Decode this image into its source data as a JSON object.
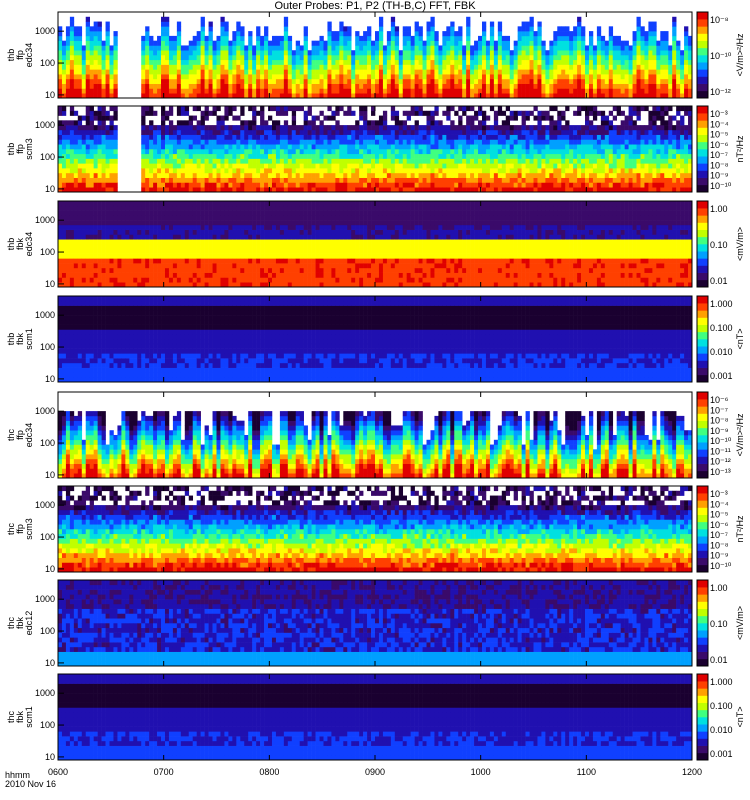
{
  "title": "Outer Probes: P1, P2 (TH-B,C) FFT, FBK",
  "footer": {
    "line1": "hhmm",
    "line2": "2010 Nov 16"
  },
  "x_ticks": [
    "0600",
    "0700",
    "0800",
    "0900",
    "1000",
    "1100",
    "1200"
  ],
  "colors": {
    "colormap": [
      "#1a0030",
      "#3a0a6a",
      "#2010b0",
      "#1040ff",
      "#00a0ff",
      "#00e0e0",
      "#40ff80",
      "#c0ff00",
      "#ffff00",
      "#ffa000",
      "#ff4000",
      "#e00000"
    ],
    "plot_bg": "#ffffff"
  },
  "chart_data": [
    {
      "type": "heatmap",
      "probe": "thb",
      "label_lines": [
        "thb",
        "ffp",
        "edc34"
      ],
      "y_ticks": [
        "1000",
        "100",
        "10"
      ],
      "y_scale": "log",
      "colorbar_ticks": [
        "10⁻⁸",
        "10⁻¹⁰",
        "10⁻¹²"
      ],
      "colorbar_label": "<V/m>²/Hz",
      "colorbar_ticks_exponent": [
        -8,
        -10,
        -12
      ],
      "x_range": [
        "0600",
        "1200"
      ]
    },
    {
      "type": "heatmap",
      "probe": "thb",
      "label_lines": [
        "thb",
        "ffp",
        "scm3"
      ],
      "y_ticks": [
        "1000",
        "100",
        "10"
      ],
      "y_scale": "log",
      "colorbar_ticks": [
        "10⁻³",
        "10⁻⁴",
        "10⁻⁵",
        "10⁻⁶",
        "10⁻⁷",
        "10⁻⁸",
        "10⁻⁹",
        "10⁻¹⁰"
      ],
      "colorbar_label": "nT²/Hz",
      "x_range": [
        "0600",
        "1200"
      ]
    },
    {
      "type": "heatmap",
      "probe": "thb",
      "label_lines": [
        "thb",
        "fbk",
        "edc34"
      ],
      "y_ticks": [
        "1000",
        "100",
        "10"
      ],
      "y_scale": "log",
      "colorbar_ticks": [
        "1.00",
        "0.10",
        "0.01"
      ],
      "colorbar_label": "<mV/m>",
      "x_range": [
        "0600",
        "1200"
      ]
    },
    {
      "type": "heatmap",
      "probe": "thb",
      "label_lines": [
        "thb",
        "fbk",
        "scm1"
      ],
      "y_ticks": [
        "1000",
        "100",
        "10"
      ],
      "y_scale": "log",
      "colorbar_ticks": [
        "1.000",
        "0.100",
        "0.010",
        "0.001"
      ],
      "colorbar_label": "<nT>",
      "x_range": [
        "0600",
        "1200"
      ]
    },
    {
      "type": "heatmap",
      "probe": "thc",
      "label_lines": [
        "thc",
        "ffp",
        "edc34"
      ],
      "y_ticks": [
        "1000",
        "100",
        "10"
      ],
      "y_scale": "log",
      "colorbar_ticks": [
        "10⁻⁶",
        "10⁻⁷",
        "10⁻⁸",
        "10⁻⁹",
        "10⁻¹⁰",
        "10⁻¹¹",
        "10⁻¹²",
        "10⁻¹³"
      ],
      "colorbar_label": "<V/m>²/Hz",
      "x_range": [
        "0600",
        "1200"
      ]
    },
    {
      "type": "heatmap",
      "probe": "thc",
      "label_lines": [
        "thc",
        "ffp",
        "scm3"
      ],
      "y_ticks": [
        "1000",
        "100",
        "10"
      ],
      "y_scale": "log",
      "colorbar_ticks": [
        "10⁻³",
        "10⁻⁴",
        "10⁻⁵",
        "10⁻⁶",
        "10⁻⁷",
        "10⁻⁸",
        "10⁻⁹",
        "10⁻¹⁰"
      ],
      "colorbar_label": "nT²/Hz",
      "x_range": [
        "0600",
        "1200"
      ]
    },
    {
      "type": "heatmap",
      "probe": "thc",
      "label_lines": [
        "thc",
        "fbk",
        "edc12"
      ],
      "y_ticks": [
        "1000",
        "100",
        "10"
      ],
      "y_scale": "log",
      "colorbar_ticks": [
        "1.00",
        "0.10",
        "0.01"
      ],
      "colorbar_label": "<mV/m>",
      "x_range": [
        "0600",
        "1200"
      ]
    },
    {
      "type": "heatmap",
      "probe": "thc",
      "label_lines": [
        "thc",
        "fbk",
        "scm1"
      ],
      "y_ticks": [
        "1000",
        "100",
        "10"
      ],
      "y_scale": "log",
      "colorbar_ticks": [
        "1.000",
        "0.100",
        "0.010",
        "0.001"
      ],
      "colorbar_label": "<nT>",
      "x_range": [
        "0600",
        "1200"
      ]
    }
  ]
}
